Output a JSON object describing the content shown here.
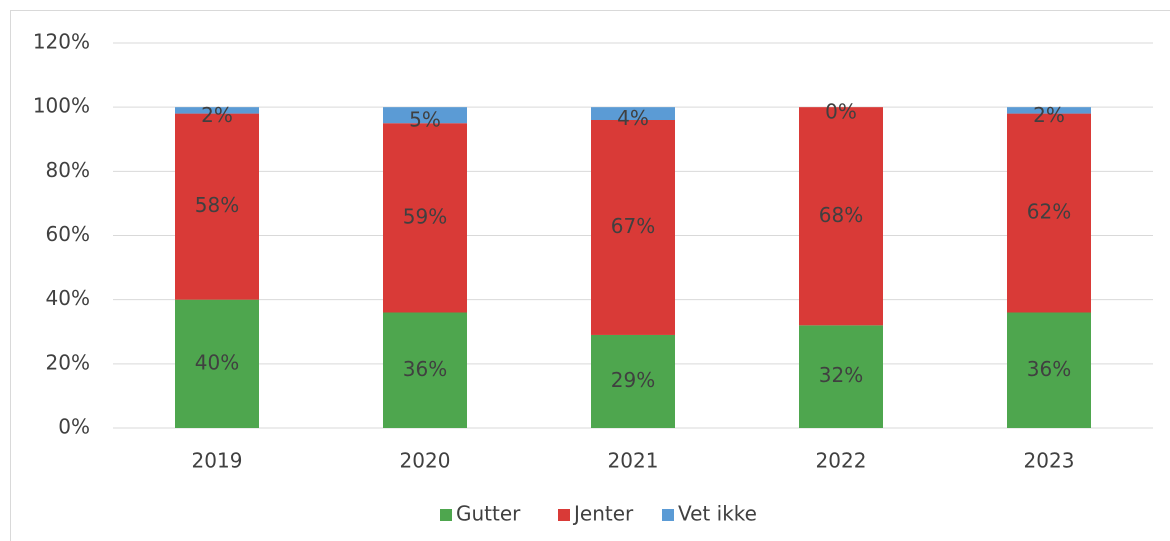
{
  "chart_data": {
    "type": "stacked_bar",
    "categories": [
      "2019",
      "2020",
      "2021",
      "2022",
      "2023"
    ],
    "series": [
      {
        "name": "Gutter",
        "color": "#4ea64e",
        "values": [
          40,
          36,
          29,
          32,
          36
        ],
        "value_labels": [
          "40%",
          "36%",
          "29%",
          "32%",
          "36%"
        ]
      },
      {
        "name": "Jenter",
        "color": "#d93a37",
        "values": [
          58,
          59,
          67,
          68,
          62
        ],
        "value_labels": [
          "58%",
          "59%",
          "67%",
          "68%",
          "62%"
        ]
      },
      {
        "name": "Vet ikke",
        "color": "#5b9bd5",
        "values": [
          2,
          5,
          4,
          0,
          2
        ],
        "value_labels": [
          "2%",
          "5%",
          "4%",
          "0%",
          "2%"
        ]
      }
    ],
    "ylim": [
      0,
      120
    ],
    "yticks": [
      {
        "value": 0,
        "label": "0%"
      },
      {
        "value": 20,
        "label": "20%"
      },
      {
        "value": 40,
        "label": "40%"
      },
      {
        "value": 60,
        "label": "60%"
      },
      {
        "value": 80,
        "label": "80%"
      },
      {
        "value": 100,
        "label": "100%"
      },
      {
        "value": 120,
        "label": "120%"
      }
    ],
    "grid": true,
    "legend": "bottom"
  }
}
